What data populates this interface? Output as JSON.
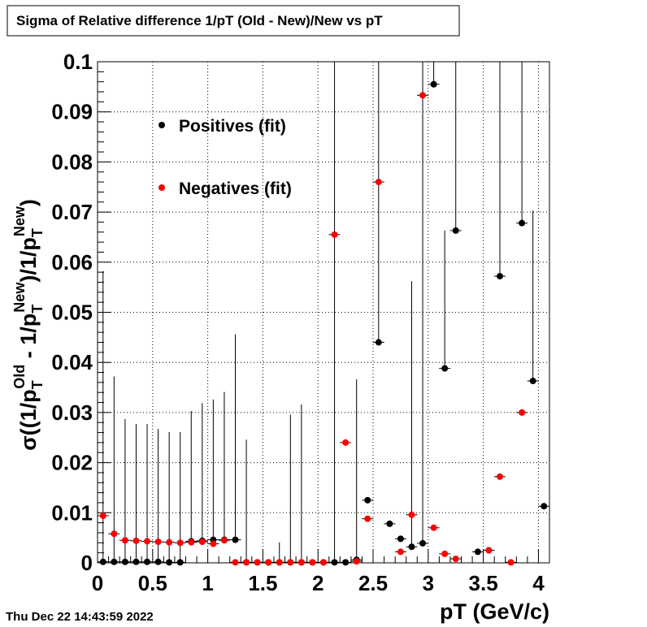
{
  "chart_data": {
    "type": "scatter",
    "title": "Sigma of Relative difference 1/pT (Old - New)/New vs pT",
    "xlabel": "pT (GeV/c)",
    "ylabel": {
      "sigma": "σ",
      "open": "((1/p",
      "sub1": "T",
      "sup1": "Old",
      "mid": " - 1/p",
      "sub2": "T",
      "sup2": "New",
      "mid2": ")/1/p",
      "sub3": "T",
      "sup3": "New",
      "close": ")"
    },
    "timestamp": "Thu Dec 22 14:43:59 2022",
    "xlim": [
      0,
      4.1
    ],
    "ylim": [
      0,
      0.1
    ],
    "xticks": [
      0,
      0.5,
      1,
      1.5,
      2,
      2.5,
      3,
      3.5,
      4
    ],
    "xtick_labels": [
      "0",
      "0.5",
      "1",
      "1.5",
      "2",
      "2.5",
      "3",
      "3.5",
      "4"
    ],
    "yticks": [
      0,
      0.01,
      0.02,
      0.03,
      0.04,
      0.05,
      0.06,
      0.07,
      0.08,
      0.09,
      0.1
    ],
    "ytick_labels": [
      "0",
      "0.01",
      "0.02",
      "0.03",
      "0.04",
      "0.05",
      "0.06",
      "0.07",
      "0.08",
      "0.09",
      "0.1"
    ],
    "grid": true,
    "legend": "top-left",
    "series": [
      {
        "name": "Positives (fit)",
        "color": "#000000",
        "points": [
          {
            "x": 0.05,
            "y": 0.0002,
            "err": 0.058
          },
          {
            "x": 0.15,
            "y": 0.0002,
            "err": 0.037
          },
          {
            "x": 0.25,
            "y": 0.0002,
            "err": 0.0285
          },
          {
            "x": 0.35,
            "y": 0.0002,
            "err": 0.0275
          },
          {
            "x": 0.45,
            "y": 0.0002,
            "err": 0.0275
          },
          {
            "x": 0.55,
            "y": 0.0002,
            "err": 0.0265
          },
          {
            "x": 0.65,
            "y": 0.0001,
            "err": 0.026
          },
          {
            "x": 0.75,
            "y": 0.0001,
            "err": 0.026
          },
          {
            "x": 0.85,
            "y": 0.0043,
            "err": 0.026
          },
          {
            "x": 0.95,
            "y": 0.0044,
            "err": 0.0275
          },
          {
            "x": 1.05,
            "y": 0.0046,
            "err": 0.028
          },
          {
            "x": 1.15,
            "y": 0.0046,
            "err": 0.0295
          },
          {
            "x": 1.25,
            "y": 0.0046,
            "err": 0.041
          },
          {
            "x": 1.35,
            "y": 0.0001,
            "err": 0.0245
          },
          {
            "x": 1.45,
            "y": 0.0001,
            "err": 0.0
          },
          {
            "x": 1.55,
            "y": 0.0001,
            "err": 0.0
          },
          {
            "x": 1.65,
            "y": 0.0001,
            "err": 0.004
          },
          {
            "x": 1.75,
            "y": 0.0001,
            "err": 0.0295
          },
          {
            "x": 1.85,
            "y": 0.0001,
            "err": 0.0315
          },
          {
            "x": 1.95,
            "y": 0.0001,
            "err": 0.0
          },
          {
            "x": 2.05,
            "y": 0.0001,
            "err": 0.0
          },
          {
            "x": 2.15,
            "y": 0.0001,
            "err": 0.1
          },
          {
            "x": 2.25,
            "y": 0.0001,
            "err": 0.0
          },
          {
            "x": 2.35,
            "y": 0.0006,
            "err": 0.036
          },
          {
            "x": 2.45,
            "y": 0.0125,
            "err": 0.0
          },
          {
            "x": 2.55,
            "y": 0.044,
            "err": 0.1
          },
          {
            "x": 2.65,
            "y": 0.0078,
            "err": 0.0
          },
          {
            "x": 2.75,
            "y": 0.0048,
            "err": 0.0
          },
          {
            "x": 2.85,
            "y": 0.0032,
            "err": 0.053
          },
          {
            "x": 2.95,
            "y": 0.0039,
            "err": 0.1
          },
          {
            "x": 3.05,
            "y": 0.0955,
            "err": 0.1
          },
          {
            "x": 3.15,
            "y": 0.0388,
            "err": 0.0275
          },
          {
            "x": 3.25,
            "y": 0.0663,
            "err": 0.1
          },
          {
            "x": 3.45,
            "y": 0.0022,
            "err": 0.0
          },
          {
            "x": 3.55,
            "y": 0.0025,
            "err": 0.0
          },
          {
            "x": 3.65,
            "y": 0.0572,
            "err": 0.1
          },
          {
            "x": 3.85,
            "y": 0.0678,
            "err": 0.1
          },
          {
            "x": 3.95,
            "y": 0.0363,
            "err": 0.034
          },
          {
            "x": 4.05,
            "y": 0.0113,
            "err": 0.0
          }
        ]
      },
      {
        "name": "Negatives (fit)",
        "color": "#ff0000",
        "points": [
          {
            "x": 0.05,
            "y": 0.0094
          },
          {
            "x": 0.15,
            "y": 0.0058
          },
          {
            "x": 0.25,
            "y": 0.0045
          },
          {
            "x": 0.35,
            "y": 0.0044
          },
          {
            "x": 0.45,
            "y": 0.0043
          },
          {
            "x": 0.55,
            "y": 0.0042
          },
          {
            "x": 0.65,
            "y": 0.0041
          },
          {
            "x": 0.75,
            "y": 0.004
          },
          {
            "x": 0.85,
            "y": 0.0041
          },
          {
            "x": 0.95,
            "y": 0.0042
          },
          {
            "x": 1.05,
            "y": 0.0038
          },
          {
            "x": 1.15,
            "y": 0.0045
          },
          {
            "x": 1.25,
            "y": 0.0001
          },
          {
            "x": 1.35,
            "y": 0.0001
          },
          {
            "x": 1.45,
            "y": 0.0001
          },
          {
            "x": 1.55,
            "y": 0.0001
          },
          {
            "x": 1.65,
            "y": 0.0001
          },
          {
            "x": 1.75,
            "y": 0.0001
          },
          {
            "x": 1.85,
            "y": 0.0001
          },
          {
            "x": 1.95,
            "y": 0.0001
          },
          {
            "x": 2.05,
            "y": 0.0001
          },
          {
            "x": 2.15,
            "y": 0.0655
          },
          {
            "x": 2.25,
            "y": 0.024
          },
          {
            "x": 2.35,
            "y": 0.0003
          },
          {
            "x": 2.45,
            "y": 0.0088
          },
          {
            "x": 2.55,
            "y": 0.076
          },
          {
            "x": 2.75,
            "y": 0.0022
          },
          {
            "x": 2.85,
            "y": 0.0096
          },
          {
            "x": 2.95,
            "y": 0.0933
          },
          {
            "x": 3.05,
            "y": 0.007
          },
          {
            "x": 3.15,
            "y": 0.0018
          },
          {
            "x": 3.25,
            "y": 0.0008
          },
          {
            "x": 3.55,
            "y": 0.0025
          },
          {
            "x": 3.65,
            "y": 0.0172
          },
          {
            "x": 3.75,
            "y": 0.0001
          },
          {
            "x": 3.85,
            "y": 0.03
          }
        ]
      }
    ]
  }
}
